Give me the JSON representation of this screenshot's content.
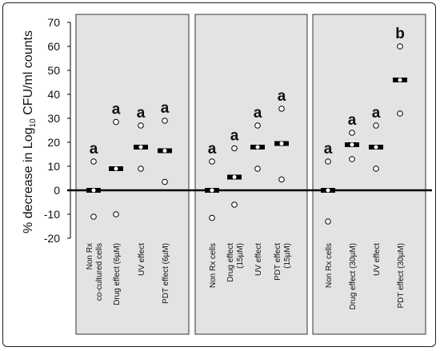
{
  "chart_data": {
    "type": "scatter",
    "title": "",
    "ylabel": "% decrease in Log",
    "ylabel_subscript": "10",
    "ylabel_suffix": " CFU/ml counts",
    "xlabel": "",
    "ylim": [
      -20,
      70
    ],
    "yticks": [
      "70",
      "60",
      "50",
      "40",
      "30",
      "20",
      "10",
      "0",
      "-10",
      "-20"
    ],
    "grid": false,
    "legend": "none",
    "marker_style": "open circles = individual values, black bar = median",
    "colors": {
      "panel": "#e3e3e3",
      "border": "#333333",
      "marker": "#000000"
    },
    "panels": [
      {
        "categories": [
          {
            "label_lines": [
              "Non Rx",
              "co-cultured cells"
            ],
            "letter": "a",
            "points": [
              12,
              -11
            ],
            "median": 0
          },
          {
            "label_lines": [
              "Drug effect (6µM)"
            ],
            "letter": "a",
            "points": [
              28.5,
              -10
            ],
            "median": 9
          },
          {
            "label_lines": [
              "UV effect"
            ],
            "letter": "a",
            "points": [
              27,
              9
            ],
            "median": 18
          },
          {
            "label_lines": [
              "PDT effect (6µM)"
            ],
            "letter": "a",
            "points": [
              29,
              3.5
            ],
            "median": 16.5
          }
        ]
      },
      {
        "categories": [
          {
            "label_lines": [
              "Non Rx cells"
            ],
            "letter": "a",
            "points": [
              12,
              -11.5
            ],
            "median": 0
          },
          {
            "label_lines": [
              "Drug effect",
              "(15µM)"
            ],
            "letter": "a",
            "points": [
              17.5,
              -6
            ],
            "median": 5.5
          },
          {
            "label_lines": [
              "UV effect"
            ],
            "letter": "a",
            "points": [
              27,
              9
            ],
            "median": 18
          },
          {
            "label_lines": [
              "PDT effect",
              "(15µM)"
            ],
            "letter": "a",
            "points": [
              34,
              4.5
            ],
            "median": 19.5
          }
        ]
      },
      {
        "categories": [
          {
            "label_lines": [
              "Non Rx cells"
            ],
            "letter": "a",
            "points": [
              12,
              -13
            ],
            "median": 0
          },
          {
            "label_lines": [
              "Drug effect (30µM)"
            ],
            "letter": "a",
            "points": [
              24,
              13
            ],
            "median": 19
          },
          {
            "label_lines": [
              "UV effect"
            ],
            "letter": "a",
            "points": [
              27,
              9
            ],
            "median": 18
          },
          {
            "label_lines": [
              "PDT effect (30µM)"
            ],
            "letter": "b",
            "points": [
              60,
              32
            ],
            "median": 46
          }
        ]
      }
    ]
  }
}
